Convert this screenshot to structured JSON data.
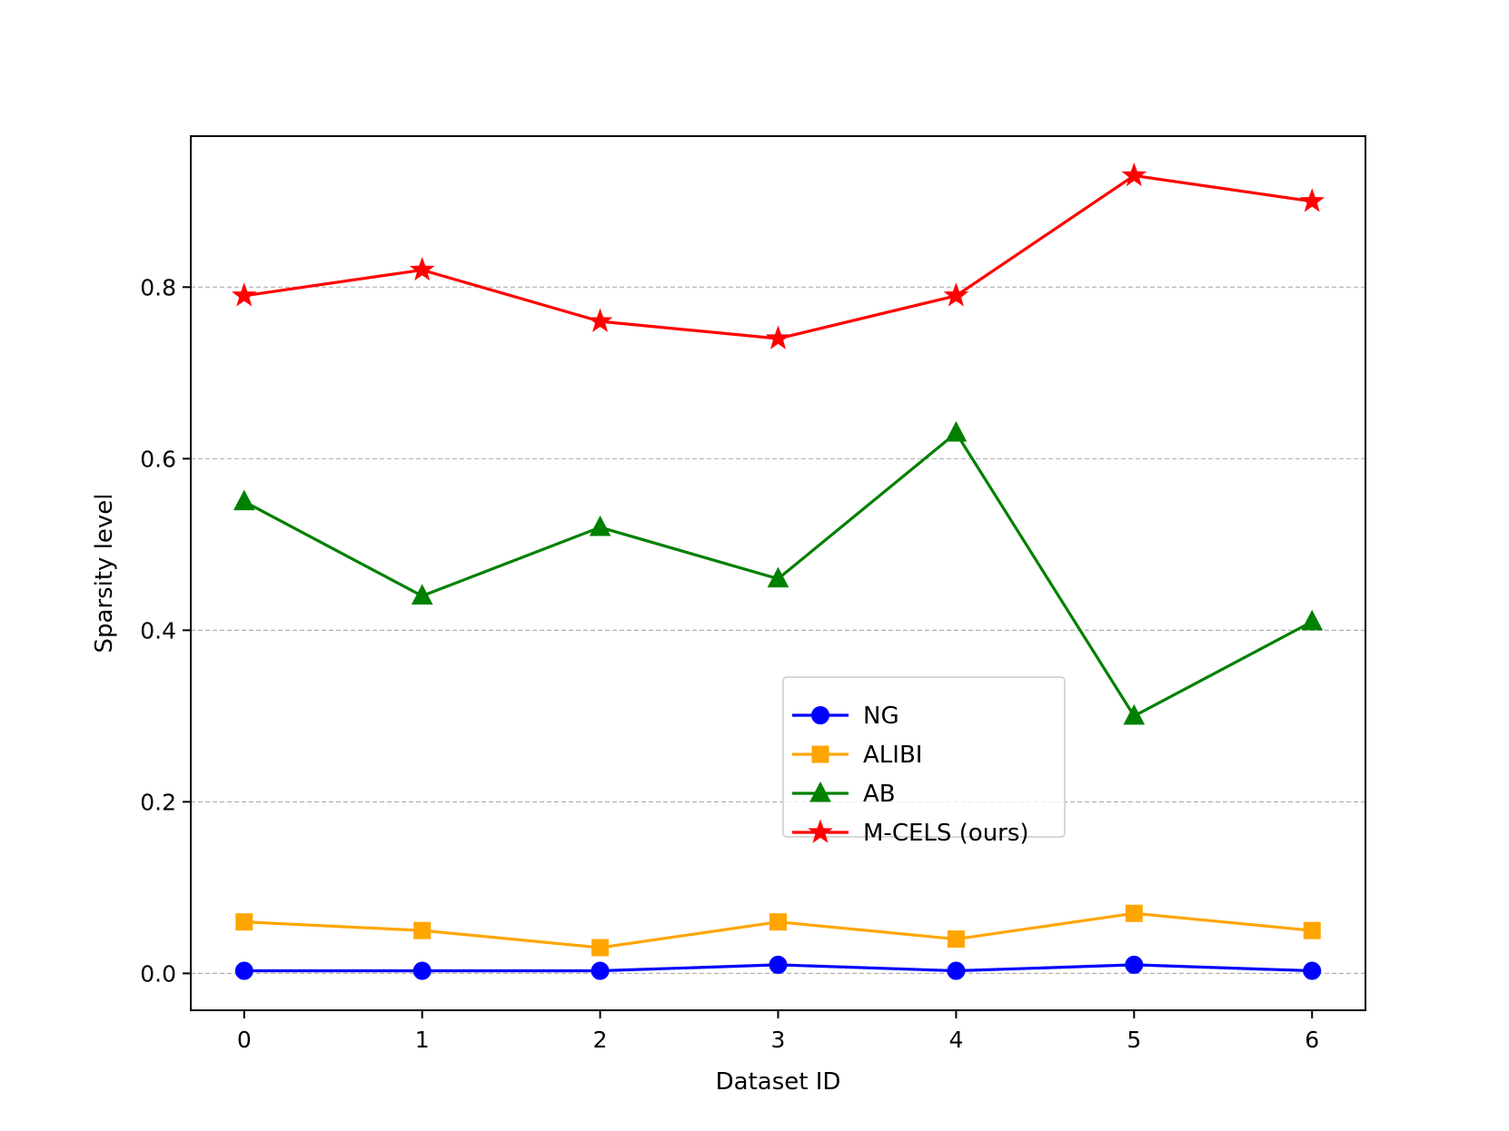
{
  "chart_data": {
    "type": "line",
    "title": "",
    "xlabel": "Dataset ID",
    "ylabel": "Sparsity level",
    "x": [
      0,
      1,
      2,
      3,
      4,
      5,
      6
    ],
    "x_ticks": [
      "0",
      "1",
      "2",
      "3",
      "4",
      "5",
      "6"
    ],
    "y_ticks": [
      "0.0",
      "0.2",
      "0.4",
      "0.6",
      "0.8"
    ],
    "xlim": [
      -0.3,
      6.3
    ],
    "ylim": [
      -0.043,
      0.976
    ],
    "grid": "horizontal dashed",
    "legend_position": "center-right",
    "series": [
      {
        "name": "NG",
        "color": "#0000ff",
        "marker": "circle",
        "values": [
          0.003,
          0.003,
          0.003,
          0.01,
          0.003,
          0.01,
          0.003
        ]
      },
      {
        "name": "ALIBI",
        "color": "#ffa500",
        "marker": "square",
        "values": [
          0.06,
          0.05,
          0.03,
          0.06,
          0.04,
          0.07,
          0.05
        ]
      },
      {
        "name": "AB",
        "color": "#008000",
        "marker": "triangle",
        "values": [
          0.55,
          0.44,
          0.52,
          0.46,
          0.63,
          0.3,
          0.41
        ]
      },
      {
        "name": "M-CELS (ours)",
        "color": "#ff0000",
        "marker": "star",
        "values": [
          0.79,
          0.82,
          0.76,
          0.74,
          0.79,
          0.93,
          0.9
        ]
      }
    ]
  }
}
